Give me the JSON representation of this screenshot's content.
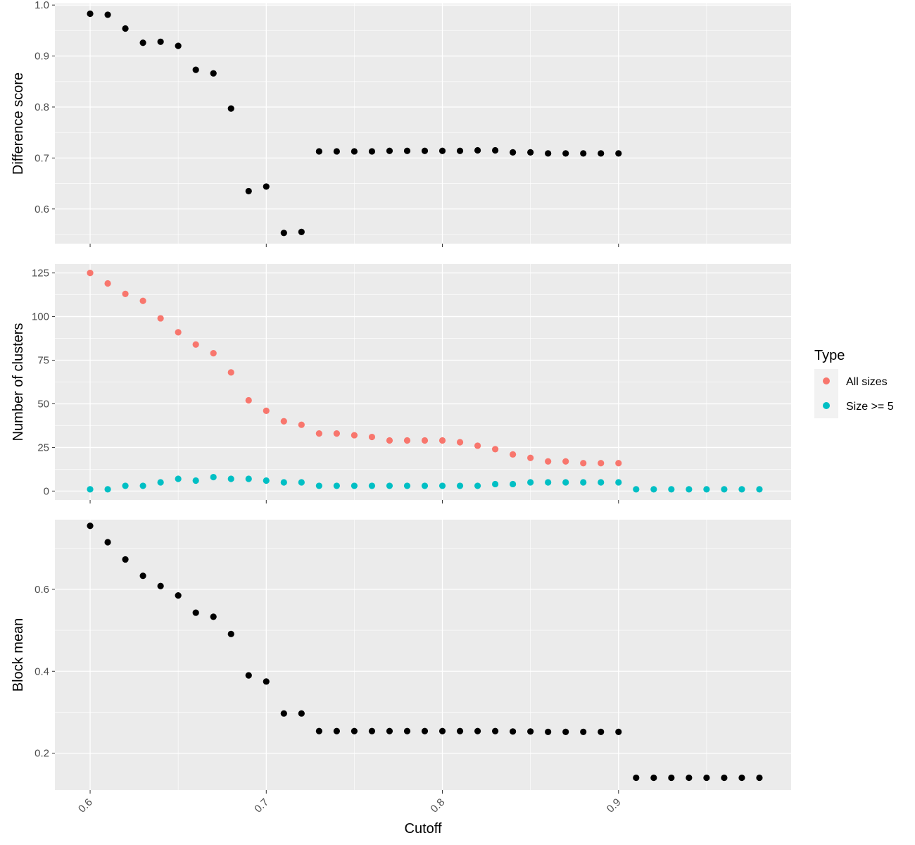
{
  "chart_data": {
    "type": "scatter",
    "xlabel": "Cutoff",
    "x_ticks": [
      0.6,
      0.7,
      0.8,
      0.9
    ],
    "x_tick_labels": [
      "0.6",
      "0.7",
      "0.8",
      "0.9"
    ],
    "xlim": [
      0.58,
      0.998
    ],
    "background": "#EBEBEB",
    "grid": true,
    "legend": {
      "title": "Type",
      "position": "right",
      "entries": [
        {
          "label": "All sizes",
          "color": "#F8766D"
        },
        {
          "label": "Size >= 5",
          "color": "#00BFC4"
        }
      ]
    },
    "panels": [
      {
        "ylabel": "Difference score",
        "ylim": [
          0.532,
          1.003
        ],
        "y_ticks": [
          0.6,
          0.7,
          0.8,
          0.9,
          1.0
        ],
        "y_tick_labels": [
          "0.6",
          "0.7",
          "0.8",
          "0.9",
          "1.0"
        ],
        "series": [
          {
            "color": "#000000",
            "x": [
              0.6,
              0.61,
              0.62,
              0.63,
              0.64,
              0.65,
              0.66,
              0.67,
              0.68,
              0.69,
              0.7,
              0.71,
              0.72,
              0.73,
              0.74,
              0.75,
              0.76,
              0.77,
              0.78,
              0.79,
              0.8,
              0.81,
              0.82,
              0.83,
              0.84,
              0.85,
              0.86,
              0.87,
              0.88,
              0.89,
              0.9
            ],
            "y": [
              0.983,
              0.981,
              0.954,
              0.926,
              0.928,
              0.92,
              0.873,
              0.866,
              0.797,
              0.635,
              0.644,
              0.553,
              0.555,
              0.713,
              0.713,
              0.713,
              0.713,
              0.714,
              0.714,
              0.714,
              0.714,
              0.714,
              0.715,
              0.715,
              0.711,
              0.711,
              0.709,
              0.709,
              0.709,
              0.709,
              0.709
            ]
          }
        ]
      },
      {
        "ylabel": "Number of clusters",
        "ylim": [
          -5.1,
          130.1
        ],
        "y_ticks": [
          0,
          25,
          50,
          75,
          100,
          125
        ],
        "y_tick_labels": [
          "0",
          "25",
          "50",
          "75",
          "100",
          "125"
        ],
        "series": [
          {
            "name": "All sizes",
            "color": "#F8766D",
            "x": [
              0.6,
              0.61,
              0.62,
              0.63,
              0.64,
              0.65,
              0.66,
              0.67,
              0.68,
              0.69,
              0.7,
              0.71,
              0.72,
              0.73,
              0.74,
              0.75,
              0.76,
              0.77,
              0.78,
              0.79,
              0.8,
              0.81,
              0.82,
              0.83,
              0.84,
              0.85,
              0.86,
              0.87,
              0.88,
              0.89,
              0.9
            ],
            "y": [
              125,
              119,
              113,
              109,
              99,
              91,
              84,
              79,
              68,
              52,
              46,
              40,
              38,
              33,
              33,
              32,
              31,
              29,
              29,
              29,
              29,
              28,
              26,
              24,
              21,
              19,
              17,
              17,
              16,
              16,
              16
            ]
          },
          {
            "name": "Size >= 5",
            "color": "#00BFC4",
            "x": [
              0.6,
              0.61,
              0.62,
              0.63,
              0.64,
              0.65,
              0.66,
              0.67,
              0.68,
              0.69,
              0.7,
              0.71,
              0.72,
              0.73,
              0.74,
              0.75,
              0.76,
              0.77,
              0.78,
              0.79,
              0.8,
              0.81,
              0.82,
              0.83,
              0.84,
              0.85,
              0.86,
              0.87,
              0.88,
              0.89,
              0.9,
              0.91,
              0.92,
              0.93,
              0.94,
              0.95,
              0.96,
              0.97,
              0.98
            ],
            "y": [
              1,
              1,
              3,
              3,
              5,
              7,
              6,
              8,
              7,
              7,
              6,
              5,
              5,
              3,
              3,
              3,
              3,
              3,
              3,
              3,
              3,
              3,
              3,
              4,
              4,
              5,
              5,
              5,
              5,
              5,
              5,
              1,
              1,
              1,
              1,
              1,
              1,
              1,
              1
            ]
          }
        ]
      },
      {
        "ylabel": "Block mean",
        "ylim": [
          0.11,
          0.77
        ],
        "y_ticks": [
          0.2,
          0.4,
          0.6
        ],
        "y_tick_labels": [
          "0.2",
          "0.4",
          "0.6"
        ],
        "series": [
          {
            "color": "#000000",
            "x": [
              0.6,
              0.61,
              0.62,
              0.63,
              0.64,
              0.65,
              0.66,
              0.67,
              0.68,
              0.69,
              0.7,
              0.71,
              0.72,
              0.73,
              0.74,
              0.75,
              0.76,
              0.77,
              0.78,
              0.79,
              0.8,
              0.81,
              0.82,
              0.83,
              0.84,
              0.85,
              0.86,
              0.87,
              0.88,
              0.89,
              0.9,
              0.91,
              0.92,
              0.93,
              0.94,
              0.95,
              0.96,
              0.97,
              0.98
            ],
            "y": [
              0.755,
              0.715,
              0.673,
              0.633,
              0.608,
              0.585,
              0.543,
              0.533,
              0.491,
              0.39,
              0.375,
              0.297,
              0.297,
              0.254,
              0.254,
              0.254,
              0.254,
              0.254,
              0.254,
              0.254,
              0.254,
              0.254,
              0.254,
              0.254,
              0.253,
              0.253,
              0.252,
              0.252,
              0.252,
              0.252,
              0.252,
              0.14,
              0.14,
              0.14,
              0.14,
              0.14,
              0.14,
              0.14,
              0.14
            ]
          }
        ]
      }
    ]
  }
}
